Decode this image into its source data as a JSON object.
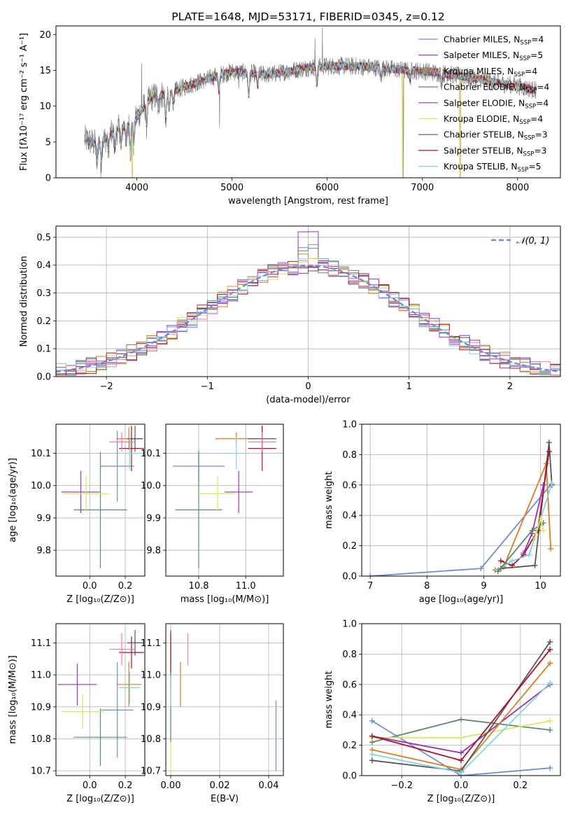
{
  "colors": {
    "chabrier_miles": "#6a8fd6",
    "salpeter_miles": "#8a2be2",
    "kroupa_miles": "#e07b1f",
    "chabrier_elodie": "#5b8a6a",
    "salpeter_elodie": "#9b30c0",
    "kroupa_elodie": "#d8e85a",
    "chabrier_stelib": "#555555",
    "salpeter_stelib": "#b01020",
    "kroupa_stelib": "#7fd6e0",
    "pink": "#f07ab0",
    "grid": "#b0b0b0"
  },
  "chart_data": [
    {
      "id": "spectrum",
      "type": "line",
      "title": "PLATE=1648, MJD=53171, FIBERID=0345, z=0.12",
      "xlabel": "wavelength [Angstrom, rest frame]",
      "ylabel": "Flux [fλ10⁻¹⁷ erg cm⁻² s⁻¹ A⁻¹]",
      "xlim": [
        3150,
        8450
      ],
      "ylim": [
        0,
        21.2
      ],
      "xticks": [
        4000,
        5000,
        6000,
        7000,
        8000
      ],
      "yticks": [
        0,
        5,
        10,
        15,
        20
      ],
      "grid": false,
      "legend_position": "top-right",
      "legend": [
        {
          "label": "Chabrier MILES, N",
          "sub": "SSP",
          "tail": "=4",
          "color": "#6a8fd6"
        },
        {
          "label": "Salpeter MILES, N",
          "sub": "SSP",
          "tail": "=5",
          "color": "#8a2be2"
        },
        {
          "label": "Kroupa MILES, N",
          "sub": "SSP",
          "tail": "=4",
          "color": "#e07b1f"
        },
        {
          "label": "Chabrier ELODIE, N",
          "sub": "SSP",
          "tail": "=4",
          "color": "#5b8a6a"
        },
        {
          "label": "Salpeter ELODIE, N",
          "sub": "SSP",
          "tail": "=4",
          "color": "#9b30c0"
        },
        {
          "label": "Kroupa ELODIE, N",
          "sub": "SSP",
          "tail": "=4",
          "color": "#d8e85a"
        },
        {
          "label": "Chabrier STELIB, N",
          "sub": "SSP",
          "tail": "=3",
          "color": "#555555"
        },
        {
          "label": "Salpeter STELIB, N",
          "sub": "SSP",
          "tail": "=3",
          "color": "#b01020"
        },
        {
          "label": "Kroupa STELIB, N",
          "sub": "SSP",
          "tail": "=5",
          "color": "#7fd6e0"
        }
      ],
      "continuum": [
        [
          3450,
          5.4
        ],
        [
          3550,
          4.8
        ],
        [
          3650,
          5.3
        ],
        [
          3750,
          6.2
        ],
        [
          3850,
          7.2
        ],
        [
          3950,
          7.5
        ],
        [
          4050,
          9.5
        ],
        [
          4150,
          11.2
        ],
        [
          4250,
          11.6
        ],
        [
          4350,
          11.8
        ],
        [
          4500,
          12.7
        ],
        [
          4700,
          13.6
        ],
        [
          4850,
          14.3
        ],
        [
          5000,
          14.8
        ],
        [
          5200,
          14.6
        ],
        [
          5400,
          14.4
        ],
        [
          5600,
          14.9
        ],
        [
          5800,
          15.4
        ],
        [
          6000,
          15.6
        ],
        [
          6200,
          15.6
        ],
        [
          6400,
          15.5
        ],
        [
          6600,
          15.3
        ],
        [
          6800,
          15.0
        ],
        [
          7000,
          14.9
        ],
        [
          7200,
          14.6
        ],
        [
          7400,
          14.2
        ],
        [
          7600,
          13.8
        ],
        [
          7800,
          13.2
        ],
        [
          8000,
          12.8
        ],
        [
          8200,
          12.2
        ]
      ],
      "dips": [
        [
          3580,
          3.0
        ],
        [
          3625,
          2.6
        ],
        [
          3700,
          2.0
        ],
        [
          3770,
          2.4
        ],
        [
          3835,
          2.6
        ],
        [
          3890,
          2.5
        ],
        [
          3933,
          3.6
        ],
        [
          3968,
          3.2
        ],
        [
          4102,
          3.0
        ],
        [
          4227,
          2.0
        ],
        [
          4304,
          3.8
        ],
        [
          4340,
          2.2
        ],
        [
          4383,
          1.6
        ],
        [
          4861,
          2.2
        ],
        [
          5175,
          3.2
        ],
        [
          5270,
          1.6
        ],
        [
          5890,
          2.6
        ],
        [
          6563,
          1.5
        ],
        [
          6870,
          1.2
        ],
        [
          7200,
          1.2
        ]
      ],
      "data_spikes": [
        [
          3620,
          0.0
        ],
        [
          3950,
          0.0
        ],
        [
          4050,
          16.0
        ],
        [
          4870,
          7.0
        ],
        [
          5070,
          12.5
        ],
        [
          5210,
          15.0
        ],
        [
          5870,
          19.5
        ],
        [
          5950,
          21.0
        ],
        [
          6090,
          14.6
        ],
        [
          6800,
          0.0
        ],
        [
          7400,
          0.0
        ]
      ],
      "model_spikes": [
        [
          3950,
          0.0
        ],
        [
          6790,
          0.0
        ],
        [
          7395,
          0.0
        ]
      ]
    },
    {
      "id": "residuals",
      "type": "histogram",
      "xlabel": "(data-model)/error",
      "ylabel": "Normed distribution",
      "xlim": [
        -2.5,
        2.5
      ],
      "ylim": [
        0,
        0.54
      ],
      "xticks": [
        -2,
        -1,
        0,
        1,
        2
      ],
      "yticks": [
        0.0,
        0.1,
        0.2,
        0.3,
        0.4,
        0.5
      ],
      "bin_width": 0.1,
      "grid": true,
      "legend_position": "top-right",
      "reference_label": "𝒩(0, 1)",
      "reference_color": "#6a8fd6",
      "peaks": [
        0.47,
        0.51,
        0.43,
        0.46
      ]
    },
    {
      "id": "z_age",
      "type": "errorbar",
      "xlabel": "Z [log₁₀(Z/Z⊙)]",
      "ylabel": "age  [log₁₀(age/yr)]",
      "xlim": [
        -0.19,
        0.31
      ],
      "ylim": [
        9.72,
        10.19
      ],
      "xticks": [
        0.0,
        0.2
      ],
      "yticks": [
        9.8,
        9.9,
        10.0,
        10.1
      ],
      "grid": true,
      "points": [
        {
          "x": 0.155,
          "y": 10.06,
          "xerr": 0.095,
          "yerr": 0.11,
          "color": "#6a8fd6"
        },
        {
          "x": -0.05,
          "y": 9.98,
          "xerr": 0.11,
          "yerr": 0.065,
          "color": "#9b30c0"
        },
        {
          "x": 0.22,
          "y": 10.145,
          "xerr": 0.07,
          "yerr": 0.035,
          "color": "#e07b1f"
        },
        {
          "x": 0.06,
          "y": 9.925,
          "xerr": 0.15,
          "yerr": 0.18,
          "color": "#5b8a6a"
        },
        {
          "x": -0.02,
          "y": 9.975,
          "xerr": 0.13,
          "yerr": 0.055,
          "color": "#d8e85a"
        },
        {
          "x": 0.255,
          "y": 10.145,
          "xerr": 0.045,
          "yerr": 0.04,
          "color": "#555555"
        },
        {
          "x": 0.235,
          "y": 10.115,
          "xerr": 0.07,
          "yerr": 0.07,
          "color": "#b01020"
        },
        {
          "x": 0.225,
          "y": 10.1,
          "xerr": 0.06,
          "yerr": 0.05,
          "color": "#7fd6e0"
        },
        {
          "x": 0.18,
          "y": 10.135,
          "xerr": 0.07,
          "yerr": 0.03,
          "color": "#f07ab0"
        }
      ]
    },
    {
      "id": "mass_age",
      "type": "errorbar",
      "xlabel": "mass [log₁₀(M/M⊙)]",
      "ylabel": "",
      "xlim": [
        10.66,
        11.16
      ],
      "ylim": [
        9.72,
        10.19
      ],
      "xticks": [
        10.8,
        11.0
      ],
      "yticks": [
        9.8,
        9.9,
        10.0,
        10.1
      ],
      "grid": true,
      "points": [
        {
          "x": 10.8,
          "y": 10.06,
          "xerr": 0.11,
          "yerr": 0.05,
          "color": "#6a8fd6"
        },
        {
          "x": 10.97,
          "y": 9.98,
          "xerr": 0.06,
          "yerr": 0.065,
          "color": "#9b30c0"
        },
        {
          "x": 10.96,
          "y": 10.145,
          "xerr": 0.09,
          "yerr": 0.02,
          "color": "#e07b1f"
        },
        {
          "x": 10.8,
          "y": 9.925,
          "xerr": 0.1,
          "yerr": 0.18,
          "color": "#5b8a6a"
        },
        {
          "x": 10.88,
          "y": 9.975,
          "xerr": 0.08,
          "yerr": 0.055,
          "color": "#d8e85a"
        },
        {
          "x": 11.07,
          "y": 10.145,
          "xerr": 0.06,
          "yerr": 0.04,
          "color": "#555555"
        },
        {
          "x": 11.07,
          "y": 10.115,
          "xerr": 0.06,
          "yerr": 0.07,
          "color": "#b01020"
        },
        {
          "x": 10.96,
          "y": 10.1,
          "xerr": 0.06,
          "yerr": 0.05,
          "color": "#7fd6e0"
        },
        {
          "x": 11.07,
          "y": 10.135,
          "xerr": 0.06,
          "yerr": 0.03,
          "color": "#f07ab0"
        }
      ]
    },
    {
      "id": "age_mass_weight",
      "type": "line",
      "xlabel": "age  [log₁₀(age/yr)]",
      "ylabel": "mass weight",
      "xlim": [
        6.85,
        10.35
      ],
      "ylim": [
        0.0,
        1.0
      ],
      "xticks": [
        7,
        8,
        9,
        10
      ],
      "yticks": [
        0.0,
        0.2,
        0.4,
        0.6,
        0.8,
        1.0
      ],
      "grid": true,
      "series": [
        {
          "color": "#6a8fd6",
          "x": [
            7.0,
            8.95,
            10.2
          ],
          "y": [
            0.0,
            0.05,
            0.61
          ]
        },
        {
          "color": "#e07b1f",
          "x": [
            9.2,
            9.35,
            10.1,
            10.18
          ],
          "y": [
            0.04,
            0.06,
            0.74,
            0.18
          ]
        },
        {
          "color": "#555555",
          "x": [
            9.3,
            9.9,
            10.15,
            10.2
          ],
          "y": [
            0.05,
            0.07,
            0.88,
            0.6
          ]
        },
        {
          "color": "#b01020",
          "x": [
            9.3,
            9.5,
            9.7,
            9.95,
            10.15
          ],
          "y": [
            0.1,
            0.07,
            0.14,
            0.3,
            0.82
          ]
        },
        {
          "color": "#7fd6e0",
          "x": [
            9.25,
            9.5,
            9.8,
            10.2
          ],
          "y": [
            0.04,
            0.1,
            0.14,
            0.61
          ]
        },
        {
          "color": "#9b30c0",
          "x": [
            9.7,
            9.85,
            10.05
          ],
          "y": [
            0.15,
            0.28,
            0.6
          ]
        },
        {
          "color": "#5b8a6a",
          "x": [
            9.25,
            9.85,
            10.05
          ],
          "y": [
            0.03,
            0.3,
            0.35
          ]
        },
        {
          "color": "#d8e85a",
          "x": [
            9.9,
            10.0,
            10.05
          ],
          "y": [
            0.25,
            0.38,
            0.3
          ]
        }
      ]
    },
    {
      "id": "z_mass",
      "type": "errorbar",
      "xlabel": "Z [log₁₀(Z/Z⊙)]",
      "ylabel": "mass [log₁₀(M/M⊙)]",
      "xlim": [
        -0.19,
        0.31
      ],
      "ylim": [
        10.685,
        11.16
      ],
      "xticks": [
        0.0,
        0.2
      ],
      "yticks": [
        10.7,
        10.8,
        10.9,
        11.0,
        11.1
      ],
      "grid": true,
      "points": [
        {
          "x": 0.155,
          "y": 10.89,
          "xerr": 0.09,
          "yerr": 0.15,
          "color": "#6a8fd6"
        },
        {
          "x": -0.07,
          "y": 10.97,
          "xerr": 0.11,
          "yerr": 0.065,
          "color": "#9b30c0"
        },
        {
          "x": 0.22,
          "y": 10.97,
          "xerr": 0.07,
          "yerr": 0.07,
          "color": "#e07b1f"
        },
        {
          "x": 0.06,
          "y": 10.805,
          "xerr": 0.15,
          "yerr": 0.09,
          "color": "#5b8a6a"
        },
        {
          "x": -0.04,
          "y": 10.885,
          "xerr": 0.12,
          "yerr": 0.055,
          "color": "#d8e85a"
        },
        {
          "x": 0.255,
          "y": 11.1,
          "xerr": 0.045,
          "yerr": 0.04,
          "color": "#555555"
        },
        {
          "x": 0.235,
          "y": 11.07,
          "xerr": 0.07,
          "yerr": 0.05,
          "color": "#b01020"
        },
        {
          "x": 0.225,
          "y": 10.96,
          "xerr": 0.06,
          "yerr": 0.05,
          "color": "#7fd6e0"
        },
        {
          "x": 0.18,
          "y": 11.08,
          "xerr": 0.07,
          "yerr": 0.05,
          "color": "#f07ab0"
        }
      ]
    },
    {
      "id": "ebv_mass",
      "type": "errorbar",
      "xlabel": "E(B-V)",
      "ylabel": "",
      "xlim": [
        -0.002,
        0.046
      ],
      "ylim": [
        10.685,
        11.16
      ],
      "xticks": [
        0.0,
        0.02,
        0.04
      ],
      "yticks": [
        10.7,
        10.8,
        10.9,
        11.0,
        11.1
      ],
      "grid": true,
      "points": [
        {
          "x": 0.043,
          "y": 10.81,
          "xerr": 0,
          "yerr": 0.11,
          "color": "#6a8fd6"
        },
        {
          "x": 0.0,
          "y": 11.05,
          "xerr": 0,
          "yerr": 0.09,
          "color": "#555555"
        },
        {
          "x": 0.0,
          "y": 11.06,
          "xerr": 0,
          "yerr": 0.07,
          "color": "#b01020"
        },
        {
          "x": 0.004,
          "y": 10.97,
          "xerr": 0,
          "yerr": 0.07,
          "color": "#e07b1f"
        },
        {
          "x": 0.0,
          "y": 10.8,
          "xerr": 0,
          "yerr": 0.1,
          "color": "#d8e85a"
        },
        {
          "x": 0.0,
          "y": 10.9,
          "xerr": 0,
          "yerr": 0.11,
          "color": "#5b8a6a"
        },
        {
          "x": 0.0,
          "y": 10.95,
          "xerr": 0,
          "yerr": 0.05,
          "color": "#7fd6e0"
        },
        {
          "x": 0.007,
          "y": 11.08,
          "xerr": 0,
          "yerr": 0.05,
          "color": "#f07ab0"
        }
      ]
    },
    {
      "id": "z_mass_weight",
      "type": "line",
      "xlabel": "Z [log₁₀(Z/Z⊙)]",
      "ylabel": "mass weight",
      "xlim": [
        -0.335,
        0.335
      ],
      "ylim": [
        0.0,
        1.0
      ],
      "xticks": [
        -0.2,
        0.0,
        0.2
      ],
      "yticks": [
        0.0,
        0.2,
        0.4,
        0.6,
        0.8,
        1.0
      ],
      "grid": true,
      "series": [
        {
          "color": "#6a8fd6",
          "x": [
            -0.3,
            0.0,
            0.3
          ],
          "y": [
            0.36,
            0.0,
            0.05
          ]
        },
        {
          "color": "#5b8a6a",
          "x": [
            -0.3,
            0.0,
            0.3
          ],
          "y": [
            0.22,
            0.37,
            0.3
          ]
        },
        {
          "color": "#d8e85a",
          "x": [
            -0.3,
            0.0,
            0.3
          ],
          "y": [
            0.25,
            0.25,
            0.36
          ]
        },
        {
          "color": "#9b30c0",
          "x": [
            -0.3,
            0.0,
            0.3
          ],
          "y": [
            0.26,
            0.15,
            0.6
          ]
        },
        {
          "color": "#e07b1f",
          "x": [
            -0.3,
            0.0,
            0.3
          ],
          "y": [
            0.17,
            0.04,
            0.74
          ]
        },
        {
          "color": "#555555",
          "x": [
            -0.3,
            0.0,
            0.3
          ],
          "y": [
            0.1,
            0.03,
            0.88
          ]
        },
        {
          "color": "#b01020",
          "x": [
            -0.3,
            0.0,
            0.3
          ],
          "y": [
            0.26,
            0.1,
            0.83
          ]
        },
        {
          "color": "#7fd6e0",
          "x": [
            -0.3,
            0.0,
            0.3
          ],
          "y": [
            0.14,
            0.02,
            0.61
          ]
        }
      ]
    }
  ]
}
